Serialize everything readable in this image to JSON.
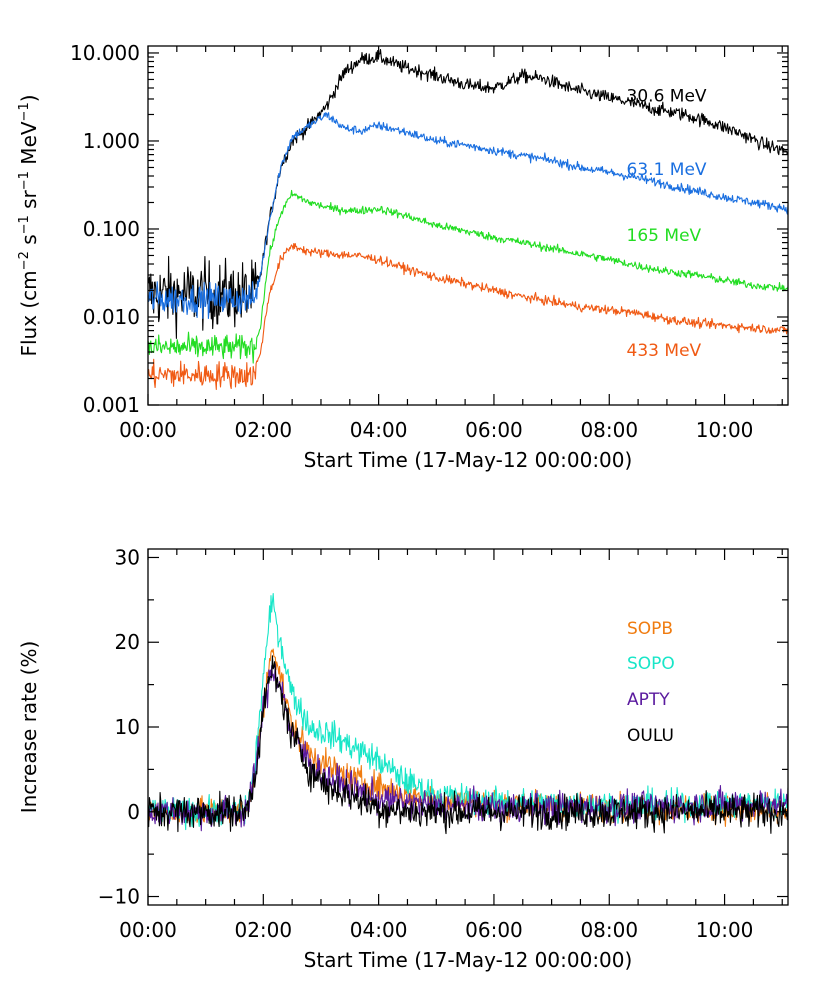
{
  "chart_data": [
    {
      "type": "line",
      "yscale": "log",
      "xlabel": "Start Time (17-May-12 00:00:00)",
      "ylabel_parts": [
        "Flux (cm",
        "−2",
        " s",
        "−1",
        " sr",
        "−1",
        " MeV",
        "−1",
        ")"
      ],
      "xlim": [
        0,
        11.1
      ],
      "ylim": [
        0.001,
        12
      ],
      "x_ticks": [
        0,
        2,
        4,
        6,
        8,
        10
      ],
      "x_tick_labels": [
        "00:00",
        "02:00",
        "04:00",
        "06:00",
        "08:00",
        "10:00"
      ],
      "y_ticks": [
        0.001,
        0.01,
        0.1,
        1,
        10
      ],
      "y_tick_labels": [
        "0.001",
        "0.010",
        "0.100",
        "1.000",
        "10.000"
      ],
      "grid": false,
      "legend": "inline-right",
      "series": [
        {
          "name": "30.6 MeV",
          "color": "#000000",
          "label_at": [
            8.3,
            3.3
          ],
          "x": [
            0,
            1.0,
            1.85,
            1.95,
            2.1,
            2.3,
            2.5,
            2.8,
            3.1,
            3.4,
            3.7,
            4.0,
            4.4,
            4.8,
            5.2,
            5.6,
            6.0,
            6.5,
            6.9,
            7.3,
            7.8,
            8.3,
            8.8,
            9.3,
            9.8,
            10.3,
            10.7,
            11.1
          ],
          "y": [
            0.018,
            0.018,
            0.018,
            0.03,
            0.12,
            0.5,
            1.0,
            1.5,
            2.5,
            6.0,
            8.5,
            9.0,
            7.0,
            6.0,
            5.0,
            4.2,
            4.0,
            5.5,
            5.0,
            4.0,
            3.3,
            2.8,
            2.3,
            2.0,
            1.6,
            1.2,
            0.9,
            0.75
          ],
          "noise": 0.15,
          "noise_early": 0.75
        },
        {
          "name": "63.1 MeV",
          "color": "#1a6fe0",
          "label_at": [
            8.3,
            0.48
          ],
          "x": [
            0,
            1.0,
            1.85,
            1.95,
            2.1,
            2.3,
            2.5,
            2.8,
            3.1,
            3.4,
            3.7,
            4.0,
            4.5,
            5.0,
            5.5,
            6.0,
            6.5,
            7.0,
            7.5,
            8.0,
            8.5,
            9.0,
            9.5,
            10.0,
            10.5,
            11.1
          ],
          "y": [
            0.016,
            0.016,
            0.016,
            0.03,
            0.12,
            0.5,
            1.1,
            1.5,
            2.0,
            1.4,
            1.3,
            1.5,
            1.25,
            1.0,
            0.9,
            0.78,
            0.68,
            0.6,
            0.5,
            0.44,
            0.38,
            0.32,
            0.27,
            0.23,
            0.2,
            0.17
          ],
          "noise": 0.1,
          "noise_early": 0.35
        },
        {
          "name": "165 MeV",
          "color": "#22dd22",
          "label_at": [
            8.3,
            0.085
          ],
          "x": [
            0,
            1.0,
            1.85,
            1.95,
            2.1,
            2.3,
            2.5,
            2.8,
            3.2,
            3.6,
            4.0,
            4.5,
            5.0,
            5.5,
            6.0,
            6.5,
            7.0,
            7.5,
            8.0,
            8.5,
            9.0,
            9.5,
            10.0,
            10.5,
            11.1
          ],
          "y": [
            0.0045,
            0.0045,
            0.0045,
            0.008,
            0.05,
            0.15,
            0.25,
            0.2,
            0.17,
            0.16,
            0.17,
            0.14,
            0.11,
            0.095,
            0.08,
            0.07,
            0.06,
            0.052,
            0.045,
            0.038,
            0.033,
            0.03,
            0.026,
            0.023,
            0.021
          ],
          "noise": 0.09,
          "noise_early": 0.28
        },
        {
          "name": "433 MeV",
          "color": "#f05a14",
          "label_at": [
            8.3,
            0.0042
          ],
          "x": [
            0,
            1.0,
            1.85,
            1.95,
            2.1,
            2.3,
            2.5,
            2.8,
            3.2,
            3.6,
            4.0,
            4.5,
            5.0,
            5.5,
            6.0,
            6.5,
            7.0,
            7.5,
            8.0,
            8.5,
            9.0,
            9.5,
            10.0,
            10.5,
            11.1
          ],
          "y": [
            0.0022,
            0.0022,
            0.0022,
            0.004,
            0.018,
            0.045,
            0.065,
            0.055,
            0.052,
            0.05,
            0.045,
            0.035,
            0.028,
            0.024,
            0.02,
            0.017,
            0.015,
            0.013,
            0.012,
            0.011,
            0.0095,
            0.0085,
            0.008,
            0.0075,
            0.007
          ],
          "noise": 0.1,
          "noise_early": 0.3
        }
      ]
    },
    {
      "type": "line",
      "yscale": "linear",
      "xlabel": "Start Time (17-May-12 00:00:00)",
      "ylabel": "Increase rate (%)",
      "xlim": [
        0,
        11.1
      ],
      "ylim": [
        -11,
        31
      ],
      "x_ticks": [
        0,
        2,
        4,
        6,
        8,
        10
      ],
      "x_tick_labels": [
        "00:00",
        "02:00",
        "04:00",
        "06:00",
        "08:00",
        "10:00"
      ],
      "y_ticks": [
        -10,
        0,
        10,
        20,
        30
      ],
      "y_tick_labels": [
        "−10",
        "0",
        "10",
        "20",
        "30"
      ],
      "grid": false,
      "legend": "right",
      "series": [
        {
          "name": "SOPB",
          "color": "#f07c10",
          "x": [
            0,
            1.7,
            1.85,
            2.0,
            2.15,
            2.3,
            2.5,
            2.8,
            3.1,
            3.5,
            4.0,
            4.5,
            5.0,
            6.0,
            8.0,
            11.1
          ],
          "y": [
            0,
            0,
            4,
            12,
            20,
            16,
            10,
            7,
            5.5,
            4,
            3,
            2,
            1.5,
            1,
            0.5,
            0
          ],
          "noise": 1.6
        },
        {
          "name": "SOPO",
          "color": "#18e6c8",
          "x": [
            0,
            1.7,
            1.85,
            2.0,
            2.15,
            2.3,
            2.5,
            2.8,
            3.2,
            3.6,
            4.0,
            4.5,
            5.0,
            6.0,
            8.0,
            11.1
          ],
          "y": [
            0,
            0,
            5,
            16,
            25,
            20,
            14,
            10,
            9,
            7.5,
            6,
            3.5,
            2,
            1.2,
            0.8,
            1
          ],
          "noise": 1.6
        },
        {
          "name": "APTY",
          "color": "#5a1a9e",
          "x": [
            0,
            1.7,
            1.85,
            2.0,
            2.15,
            2.3,
            2.5,
            2.8,
            3.1,
            3.5,
            4.0,
            4.5,
            5.0,
            6.0,
            8.0,
            11.1
          ],
          "y": [
            0,
            0,
            4,
            12,
            17,
            15,
            9,
            6,
            4,
            3,
            1.5,
            1,
            0.8,
            0.5,
            0.5,
            1
          ],
          "noise": 1.8
        },
        {
          "name": "OULU",
          "color": "#000000",
          "x": [
            0,
            1.7,
            1.85,
            2.0,
            2.15,
            2.3,
            2.5,
            2.8,
            3.1,
            3.5,
            4.0,
            4.5,
            5.0,
            6.0,
            8.0,
            11.1
          ],
          "y": [
            0,
            0,
            4,
            12,
            17,
            14,
            9,
            5,
            3,
            2,
            0.5,
            0,
            0,
            0,
            0,
            0
          ],
          "noise": 2.0
        }
      ]
    }
  ]
}
